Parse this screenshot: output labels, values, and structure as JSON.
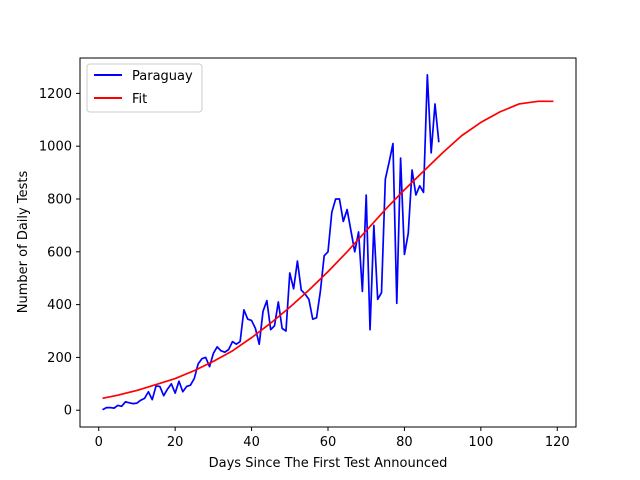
{
  "chart_data": {
    "type": "line",
    "xlabel": "Days Since The First Test Announced",
    "ylabel": "Number of Daily Tests",
    "xlim": [
      -4.9,
      124.9
    ],
    "ylim": [
      -63.5,
      1334
    ],
    "x_ticks": [
      0,
      20,
      40,
      60,
      80,
      100,
      120
    ],
    "y_ticks": [
      0,
      200,
      400,
      600,
      800,
      1000,
      1200
    ],
    "grid": false,
    "legend_position": "top-left",
    "series": [
      {
        "name": "Paraguay",
        "color": "#0000ff",
        "x": [
          1,
          2,
          3,
          4,
          5,
          6,
          7,
          8,
          9,
          10,
          11,
          12,
          13,
          14,
          15,
          16,
          17,
          18,
          19,
          20,
          21,
          22,
          23,
          24,
          25,
          26,
          27,
          28,
          29,
          30,
          31,
          32,
          33,
          34,
          35,
          36,
          37,
          38,
          39,
          40,
          41,
          42,
          43,
          44,
          45,
          46,
          47,
          48,
          49,
          50,
          51,
          52,
          53,
          54,
          55,
          56,
          57,
          58,
          59,
          60,
          61,
          62,
          63,
          64,
          65,
          66,
          67,
          68,
          69,
          70,
          71,
          72,
          73,
          74,
          75,
          76,
          77,
          78,
          79,
          80,
          81,
          82,
          83,
          84,
          85,
          86,
          87,
          88,
          89
        ],
        "values": [
          2,
          10,
          10,
          8,
          18,
          15,
          32,
          28,
          25,
          27,
          38,
          45,
          70,
          40,
          92,
          90,
          55,
          80,
          100,
          65,
          110,
          70,
          90,
          95,
          120,
          175,
          195,
          200,
          165,
          215,
          240,
          225,
          220,
          230,
          260,
          250,
          260,
          380,
          345,
          340,
          310,
          250,
          375,
          415,
          305,
          320,
          410,
          310,
          300,
          520,
          460,
          565,
          455,
          440,
          420,
          345,
          350,
          450,
          585,
          600,
          750,
          800,
          800,
          715,
          760,
          680,
          600,
          675,
          450,
          815,
          305,
          700,
          420,
          445,
          875,
          940,
          1010,
          405,
          955,
          590,
          670,
          910,
          815,
          850,
          825,
          1270,
          975,
          1160,
          1015
        ]
      },
      {
        "name": "Fit",
        "color": "#ff0000",
        "x": [
          1,
          5,
          10,
          15,
          20,
          25,
          30,
          35,
          40,
          45,
          50,
          55,
          60,
          65,
          70,
          75,
          80,
          85,
          90,
          95,
          100,
          105,
          110,
          115,
          119
        ],
        "values": [
          45,
          57,
          75,
          97,
          120,
          150,
          185,
          225,
          275,
          330,
          390,
          455,
          525,
          600,
          680,
          760,
          835,
          905,
          975,
          1040,
          1090,
          1130,
          1160,
          1170,
          1170
        ]
      }
    ]
  }
}
